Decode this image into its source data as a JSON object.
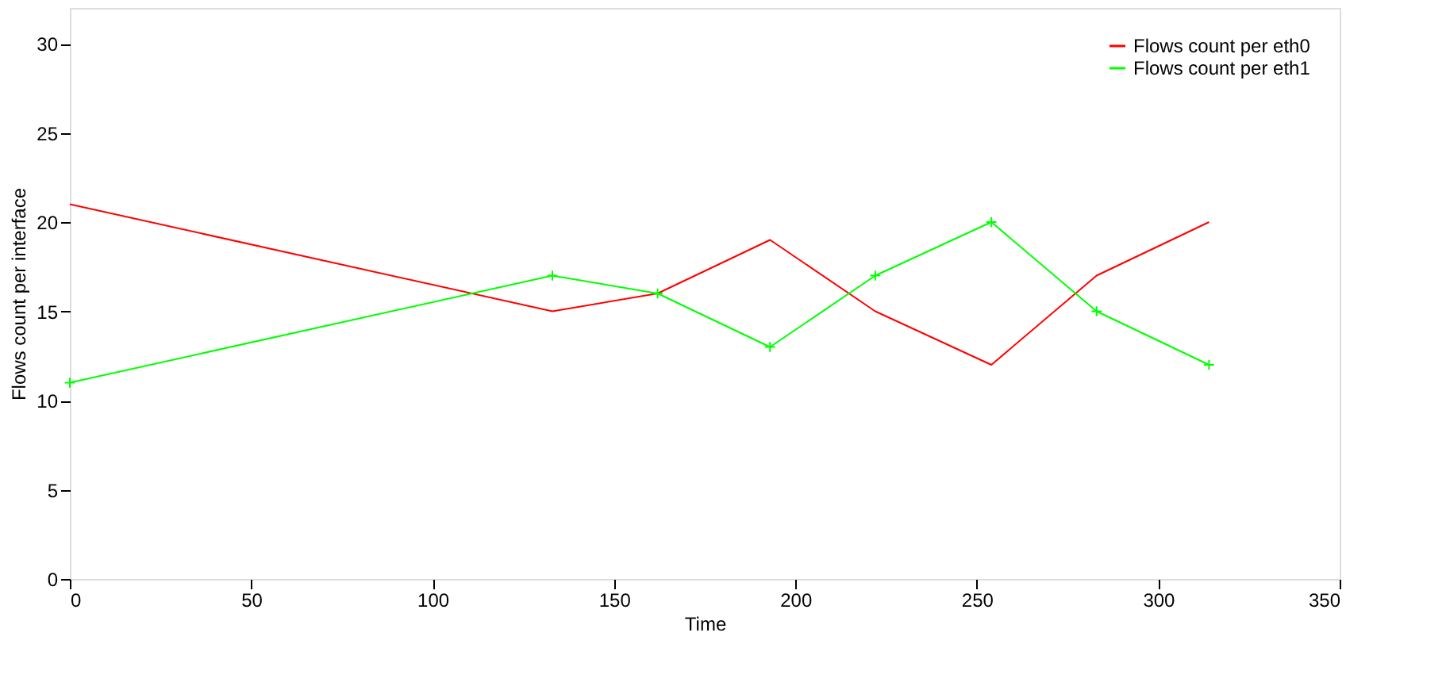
{
  "chart_data": {
    "type": "line",
    "xlabel": "Time",
    "ylabel": "Flows count per interface",
    "xlim": [
      0,
      350
    ],
    "xticks": [
      0,
      50,
      100,
      150,
      200,
      250,
      300,
      350
    ],
    "ylim": [
      0,
      32
    ],
    "yticks": [
      0,
      5,
      10,
      15,
      20,
      25,
      30
    ],
    "grid": false,
    "legend": "top right",
    "x": [
      0,
      133,
      162,
      193,
      222,
      254,
      283,
      314
    ],
    "series": [
      {
        "name": "Flows count per eth0",
        "color": "#ff0000",
        "marker": "none",
        "values": [
          21,
          15,
          16,
          19,
          15,
          12,
          17,
          20
        ]
      },
      {
        "name": "Flows count per eth1",
        "color": "#00ff00",
        "marker": "cross",
        "values": [
          11,
          17,
          16,
          13,
          17,
          20,
          15,
          12
        ]
      }
    ]
  }
}
